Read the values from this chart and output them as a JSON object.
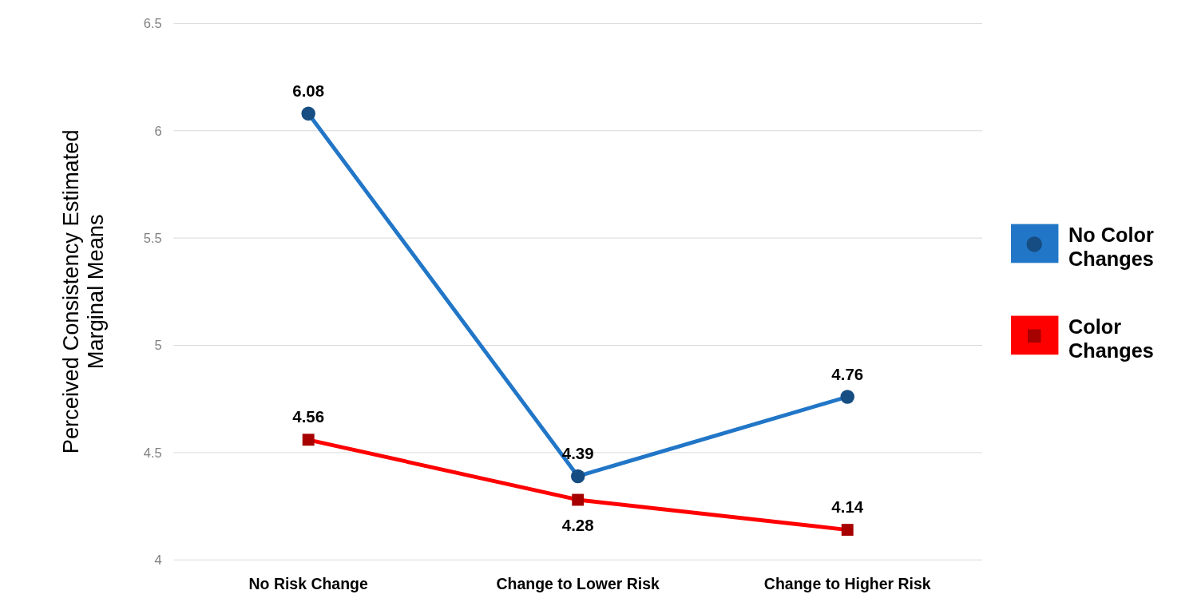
{
  "chart_data": {
    "type": "line",
    "ylabel": "Perceived Consistency Estimated Marginal Means",
    "categories": [
      "No Risk Change",
      "Change to Lower Risk",
      "Change to Higher Risk"
    ],
    "series": [
      {
        "name": "No Color Changes",
        "color": "#2176c7",
        "marker": "circle",
        "values": [
          6.08,
          4.39,
          4.76
        ]
      },
      {
        "name": "Color Changes",
        "color": "#ff0000",
        "marker": "square",
        "values": [
          4.56,
          4.28,
          4.14
        ]
      }
    ],
    "ylim": [
      4,
      6.5
    ],
    "yticks": [
      4,
      4.5,
      5,
      5.5,
      6,
      6.5
    ],
    "grid": "y",
    "legend": "right",
    "data_labels": true,
    "line_style": "solid"
  }
}
